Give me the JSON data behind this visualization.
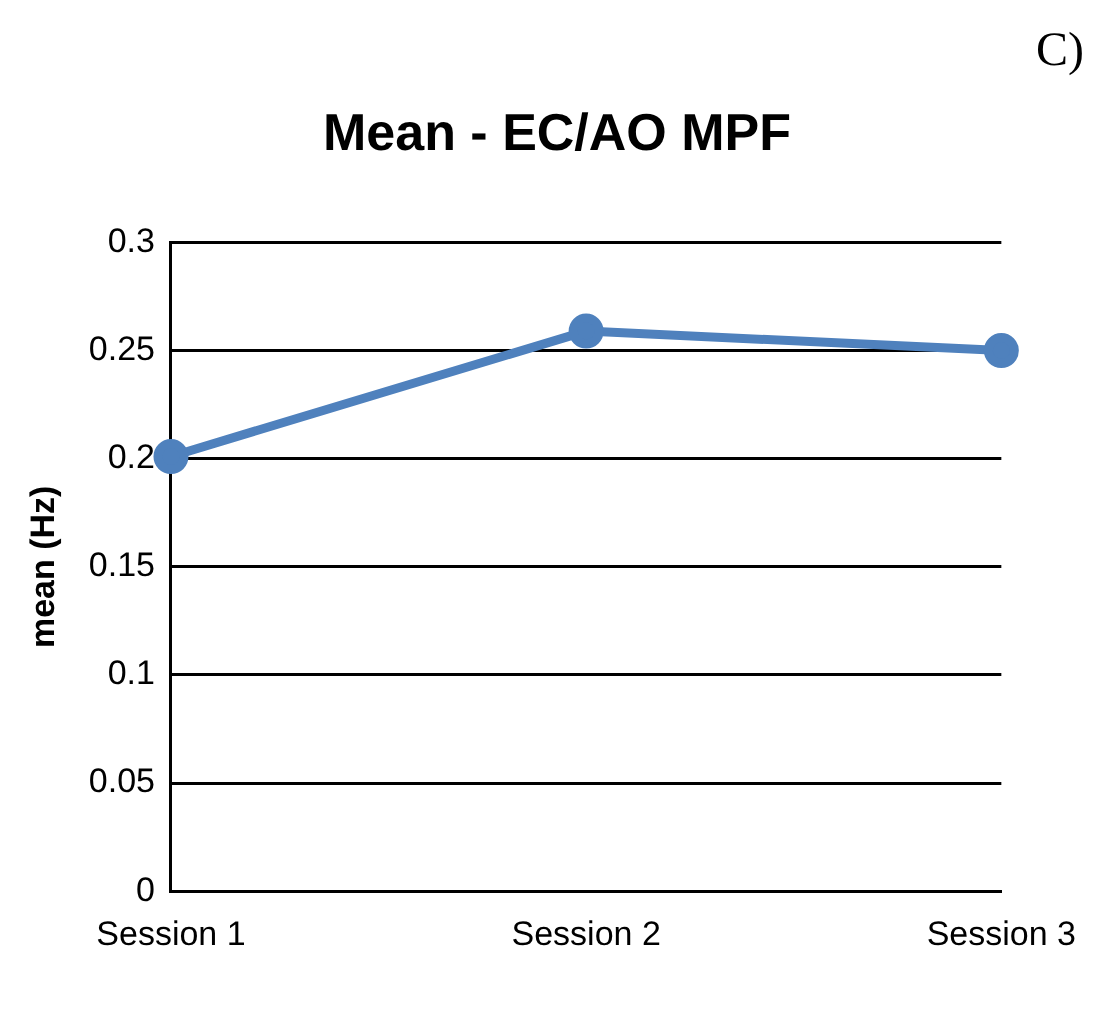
{
  "chart_data": {
    "type": "line",
    "title": "Mean - EC/AO MPF",
    "ylabel": "mean (Hz)",
    "categories": [
      "Session 1",
      "Session 2",
      "Session 3"
    ],
    "series": [
      {
        "color": "#4f81bd",
        "values": [
          0.201,
          0.259,
          0.25
        ]
      }
    ],
    "ylim": [
      0,
      0.3
    ],
    "yticks": [
      0,
      0.05,
      0.1,
      0.15,
      0.2,
      0.25,
      0.3
    ],
    "grid": "y",
    "legend": false,
    "marker": "circle",
    "line_style": "solid",
    "annotations": [
      "C)"
    ]
  }
}
